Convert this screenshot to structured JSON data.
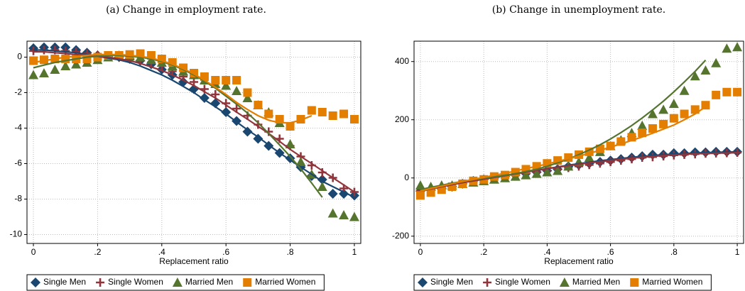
{
  "chart_data": [
    {
      "type": "scatter",
      "title": "(a) Change in employment rate.",
      "x_label": "Replacement ratio",
      "xlim": [
        -0.02,
        1.02
      ],
      "ylim": [
        -10.5,
        0.9
      ],
      "xticks": [
        0,
        {
          "value": 0.2,
          "label": ".2"
        },
        {
          "value": 0.4,
          "label": ".4"
        },
        {
          "value": 0.6,
          "label": ".6"
        },
        {
          "value": 0.8,
          "label": ".8"
        },
        1
      ],
      "yticks": [
        0,
        -2,
        -4,
        -6,
        -8,
        -10
      ],
      "grid": true,
      "legend": "bottom",
      "x": [
        0,
        0.033,
        0.067,
        0.1,
        0.133,
        0.167,
        0.2,
        0.233,
        0.267,
        0.3,
        0.333,
        0.367,
        0.4,
        0.433,
        0.467,
        0.5,
        0.533,
        0.567,
        0.6,
        0.633,
        0.667,
        0.7,
        0.733,
        0.767,
        0.8,
        0.833,
        0.867,
        0.9,
        0.933,
        0.967,
        1
      ],
      "series": [
        {
          "name": "Single Men",
          "color": "#1a476f",
          "marker": "diamond",
          "values": [
            0.5,
            0.55,
            0.55,
            0.55,
            0.4,
            0.25,
            0.1,
            0.05,
            0.0,
            -0.1,
            -0.2,
            -0.4,
            -0.7,
            -1.0,
            -1.4,
            -1.8,
            -2.3,
            -2.6,
            -3.1,
            -3.6,
            -4.2,
            -4.6,
            -5.0,
            -5.4,
            -5.7,
            -6.2,
            -6.7,
            -6.9,
            -7.7,
            -7.7,
            -7.8
          ],
          "fit": [
            0.4,
            0.4,
            0.35,
            0.3,
            0.25,
            0.15,
            0.05,
            -0.05,
            -0.15,
            -0.3,
            -0.5,
            -0.75,
            -1.0,
            -1.3,
            -1.65,
            -2.0,
            -2.4,
            -2.8,
            -3.2,
            -3.65,
            -4.1,
            -4.5,
            -4.95,
            -5.4,
            -5.8,
            -6.2,
            -6.6,
            -7.0,
            -7.3,
            -7.6,
            -7.9
          ]
        },
        {
          "name": "Single Women",
          "color": "#90353b",
          "marker": "plus",
          "values": [
            0.35,
            0.4,
            0.4,
            0.35,
            0.3,
            0.2,
            0.1,
            0.05,
            0,
            -0.05,
            -0.2,
            -0.3,
            -0.5,
            -0.8,
            -1.1,
            -1.4,
            -1.8,
            -2.1,
            -2.6,
            -2.9,
            -3.3,
            -3.8,
            -4.2,
            -4.6,
            -5.0,
            -5.6,
            -6.1,
            -6.5,
            -6.8,
            -7.4,
            -7.6
          ],
          "fit": [
            0.3,
            0.3,
            0.25,
            0.2,
            0.15,
            0.1,
            0.05,
            0,
            -0.1,
            -0.2,
            -0.35,
            -0.55,
            -0.75,
            -1.0,
            -1.3,
            -1.6,
            -1.95,
            -2.3,
            -2.7,
            -3.1,
            -3.5,
            -3.9,
            -4.3,
            -4.75,
            -5.2,
            -5.6,
            -6.0,
            -6.4,
            -6.8,
            -7.2,
            -7.6
          ]
        },
        {
          "name": "Married Men",
          "color": "#55752f",
          "marker": "triangle",
          "values": [
            -1.0,
            -0.9,
            -0.7,
            -0.5,
            -0.4,
            -0.3,
            -0.15,
            0,
            0.1,
            0.05,
            0,
            -0.15,
            -0.3,
            -0.5,
            -0.8,
            -1.0,
            -1.3,
            -1.5,
            -1.6,
            -1.9,
            -2.3,
            -2.7,
            -3.1,
            -3.7,
            -4.9,
            -5.9,
            -6.6,
            -7.3,
            -8.8,
            -8.9,
            -9.0
          ],
          "fit": [
            -0.6,
            -0.45,
            -0.3,
            -0.2,
            -0.1,
            0,
            0.05,
            0.1,
            0.1,
            0.05,
            0,
            -0.1,
            -0.25,
            -0.45,
            -0.7,
            -1.0,
            -1.35,
            -1.75,
            -2.2,
            -2.65,
            -3.15,
            -3.7,
            -4.3,
            -4.95,
            -5.6,
            -6.3,
            -7.1,
            -7.9,
            null,
            null,
            null
          ]
        },
        {
          "name": "Married Women",
          "color": "#e37e00",
          "marker": "square",
          "values": [
            -0.2,
            -0.15,
            -0.1,
            -0.1,
            -0.1,
            -0.1,
            0,
            0.1,
            0.1,
            0.15,
            0.2,
            0.1,
            -0.1,
            -0.3,
            -0.6,
            -0.9,
            -1.1,
            -1.3,
            -1.3,
            -1.3,
            -2.0,
            -2.7,
            -3.2,
            -3.5,
            -3.9,
            -3.5,
            -3.0,
            -3.1,
            -3.3,
            -3.2,
            -3.5
          ],
          "fit": [
            -0.3,
            -0.2,
            -0.1,
            0,
            0.05,
            0.1,
            0.15,
            0.15,
            0.15,
            0.1,
            0.05,
            -0.05,
            -0.2,
            -0.4,
            -0.65,
            -0.95,
            -1.3,
            -1.7,
            -2.1,
            -2.55,
            -2.95,
            -3.3,
            -3.55,
            -3.7,
            -3.7,
            -3.55,
            -3.3,
            null,
            null,
            null,
            null
          ]
        }
      ]
    },
    {
      "type": "scatter",
      "title": "(b) Change in unemployment rate.",
      "x_label": "Replacement ratio",
      "xlim": [
        -0.02,
        1.02
      ],
      "ylim": [
        -225,
        470
      ],
      "xticks": [
        0,
        {
          "value": 0.2,
          "label": ".2"
        },
        {
          "value": 0.4,
          "label": ".4"
        },
        {
          "value": 0.6,
          "label": ".6"
        },
        {
          "value": 0.8,
          "label": ".8"
        },
        1
      ],
      "yticks": [
        400,
        200,
        0,
        -200
      ],
      "grid": true,
      "legend": "bottom",
      "x": [
        0,
        0.033,
        0.067,
        0.1,
        0.133,
        0.167,
        0.2,
        0.233,
        0.267,
        0.3,
        0.333,
        0.367,
        0.4,
        0.433,
        0.467,
        0.5,
        0.533,
        0.567,
        0.6,
        0.633,
        0.667,
        0.7,
        0.733,
        0.767,
        0.8,
        0.833,
        0.867,
        0.9,
        0.933,
        0.967,
        1
      ],
      "series": [
        {
          "name": "Single Men",
          "color": "#1a476f",
          "marker": "diamond",
          "values": [
            -45,
            -40,
            -35,
            -30,
            -20,
            -10,
            -5,
            0,
            5,
            10,
            15,
            20,
            25,
            30,
            40,
            45,
            50,
            55,
            60,
            65,
            70,
            75,
            80,
            80,
            85,
            85,
            88,
            88,
            90,
            90,
            90
          ],
          "fit": [
            -45,
            -38,
            -30,
            -23,
            -16,
            -10,
            -4,
            2,
            8,
            14,
            20,
            26,
            32,
            38,
            44,
            49,
            54,
            59,
            63,
            67,
            71,
            74,
            77,
            80,
            82,
            84,
            86,
            87,
            88,
            89,
            90
          ]
        },
        {
          "name": "Single Women",
          "color": "#90353b",
          "marker": "plus",
          "values": [
            -45,
            -40,
            -35,
            -28,
            -20,
            -13,
            -5,
            0,
            5,
            10,
            15,
            20,
            25,
            30,
            35,
            40,
            45,
            50,
            55,
            60,
            65,
            70,
            72,
            75,
            78,
            80,
            82,
            84,
            85,
            86,
            87
          ],
          "fit": [
            -45,
            -38,
            -30,
            -23,
            -16,
            -10,
            -4,
            2,
            8,
            14,
            20,
            26,
            32,
            37,
            42,
            47,
            52,
            56,
            60,
            64,
            68,
            71,
            74,
            77,
            79,
            81,
            83,
            84,
            85,
            86,
            87
          ]
        },
        {
          "name": "Married Men",
          "color": "#55752f",
          "marker": "triangle",
          "values": [
            -25,
            -30,
            -25,
            -25,
            -20,
            -15,
            -10,
            -5,
            0,
            5,
            10,
            15,
            20,
            25,
            40,
            55,
            70,
            90,
            110,
            130,
            155,
            180,
            220,
            235,
            255,
            300,
            350,
            370,
            395,
            445,
            450
          ],
          "fit": [
            -40,
            -32,
            -25,
            -18,
            -12,
            -6,
            -1,
            4,
            9,
            15,
            22,
            30,
            40,
            52,
            65,
            80,
            96,
            114,
            134,
            156,
            180,
            206,
            234,
            264,
            296,
            330,
            366,
            405,
            null,
            null,
            null
          ]
        },
        {
          "name": "Married Women",
          "color": "#e37e00",
          "marker": "square",
          "values": [
            -60,
            -50,
            -40,
            -30,
            -20,
            -10,
            -5,
            5,
            10,
            20,
            30,
            40,
            50,
            60,
            70,
            80,
            90,
            100,
            110,
            125,
            140,
            155,
            170,
            185,
            205,
            220,
            235,
            250,
            285,
            295,
            295
          ],
          "fit": [
            -45,
            -36,
            -28,
            -20,
            -12,
            -5,
            2,
            9,
            16,
            24,
            32,
            40,
            48,
            57,
            66,
            75,
            85,
            95,
            106,
            117,
            129,
            141,
            154,
            168,
            182,
            200,
            220,
            245,
            null,
            null,
            null
          ]
        }
      ]
    }
  ]
}
